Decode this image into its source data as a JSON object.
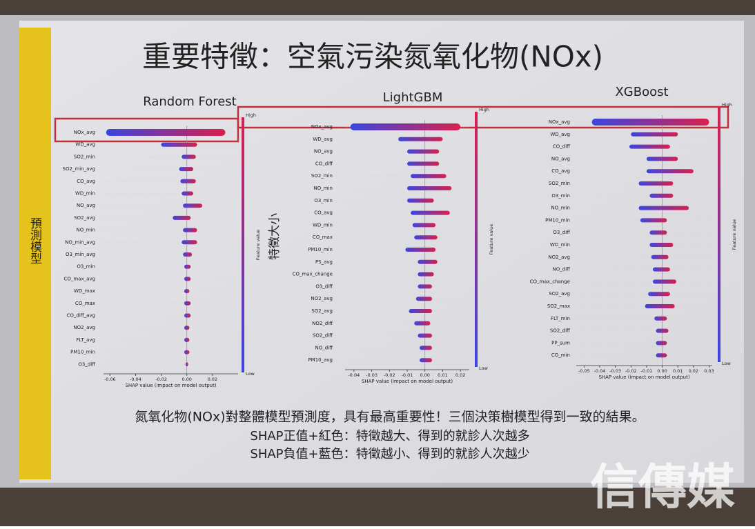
{
  "slide": {
    "title": "重要特徵：空氣污染氮氧化物(NOx)",
    "side_label": "預測模型",
    "axis_note": "特徵大小",
    "caption": [
      "氮氧化物(NOx)對整體模型預測度，具有最高重要性！三個決策樹模型得到一致的結果。",
      "SHAP正值+紅色：特徵越大、得到的就診人次越多",
      "SHAP負值+藍色：特徵越小、得到的就診人次越少"
    ],
    "watermark": "信傳媒"
  },
  "chart_data": [
    {
      "type": "beeswarm",
      "title": "Random Forest",
      "categories": [
        "NOx_avg",
        "WD_avg",
        "SO2_min",
        "SO2_min_avg",
        "CO_avg",
        "WD_min",
        "NO_avg",
        "SO2_avg",
        "NO_min",
        "NO_min_avg",
        "O3_min_avg",
        "O3_min",
        "CO_max_avg",
        "WD_max",
        "CO_max",
        "CO_diff_avg",
        "NO2_avg",
        "FLT_avg",
        "PM10_min",
        "O3_diff"
      ],
      "values_low": [
        -0.063,
        -0.02,
        -0.004,
        -0.006,
        -0.005,
        -0.004,
        -0.003,
        -0.011,
        -0.003,
        -0.004,
        -0.003,
        -0.002,
        -0.002,
        -0.002,
        -0.002,
        -0.002,
        -0.002,
        -0.002,
        -0.002,
        -0.001
      ],
      "values_high": [
        0.03,
        0.008,
        0.007,
        0.005,
        0.007,
        0.005,
        0.012,
        0.003,
        0.008,
        0.008,
        0.004,
        0.003,
        0.003,
        0.002,
        0.003,
        0.003,
        0.002,
        0.002,
        0.002,
        0.001
      ],
      "xlabel": "SHAP value (impact on model output)",
      "xlim": [
        -0.065,
        0.04
      ],
      "xticks": [
        -0.06,
        -0.04,
        -0.02,
        {
          "value": 0,
          "label": "0.00"
        },
        0.02
      ],
      "colorbar_label": "Feature value",
      "colorbar_high": "High",
      "colorbar_low": "Low",
      "low_color": "#3a46e0",
      "high_color": "#d8204c"
    },
    {
      "type": "beeswarm",
      "title": "LightGBM",
      "categories": [
        "NOx_avg",
        "WD_avg",
        "NO_avg",
        "CO_diff",
        "SO2_min",
        "NO_min",
        "O3_min",
        "CO_avg",
        "WD_min",
        "CO_max",
        "PM10_min",
        "PS_avg",
        "CO_max_change",
        "O3_diff",
        "NO2_avg",
        "SO2_avg",
        "NO2_diff",
        "SO2_diff",
        "NO_diff",
        "PM10_avg"
      ],
      "values_low": [
        -0.042,
        -0.015,
        -0.01,
        -0.01,
        -0.008,
        -0.01,
        -0.01,
        -0.008,
        -0.007,
        -0.006,
        -0.011,
        -0.004,
        -0.004,
        -0.004,
        -0.005,
        -0.009,
        -0.006,
        -0.004,
        -0.003,
        -0.003
      ],
      "values_high": [
        0.02,
        0.01,
        0.008,
        0.008,
        0.012,
        0.015,
        0.005,
        0.014,
        0.006,
        0.007,
        0.006,
        0.007,
        0.005,
        0.004,
        0.004,
        0.004,
        0.003,
        0.004,
        0.004,
        0.004
      ],
      "xlabel": "SHAP value (impact on model output)",
      "xlim": [
        -0.045,
        0.025
      ],
      "xticks": [
        -0.04,
        -0.03,
        -0.02,
        -0.01,
        {
          "value": 0,
          "label": "0.00"
        },
        0.01,
        0.02
      ],
      "colorbar_label": "Feature value",
      "colorbar_high": "High",
      "colorbar_low": "Low",
      "low_color": "#3a46e0",
      "high_color": "#d8204c"
    },
    {
      "type": "beeswarm",
      "title": "XGBoost",
      "categories": [
        "NOx_avg",
        "WD_avg",
        "CO_diff",
        "NO_avg",
        "CO_avg",
        "SO2_min",
        "O3_min",
        "NO_min",
        "PM10_min",
        "O3_diff",
        "WD_min",
        "NO2_avg",
        "NO_diff",
        "CO_max_change",
        "SO2_avg",
        "SO2_max",
        "FLT_min",
        "SO2_diff",
        "PP_sum",
        "CO_min"
      ],
      "values_low": [
        -0.045,
        -0.02,
        -0.021,
        -0.01,
        -0.01,
        -0.015,
        -0.008,
        -0.015,
        -0.014,
        -0.008,
        -0.008,
        -0.007,
        -0.006,
        -0.006,
        -0.009,
        -0.011,
        -0.005,
        -0.004,
        -0.004,
        -0.004
      ],
      "values_high": [
        0.03,
        0.01,
        0.005,
        0.01,
        0.02,
        0.007,
        0.007,
        0.017,
        0.003,
        0.003,
        0.007,
        0.004,
        0.005,
        0.009,
        0.005,
        0.008,
        0.003,
        0.004,
        0.003,
        0.003
      ],
      "xlabel": "SHAP value (impact on model output)",
      "xlim": [
        -0.055,
        0.032
      ],
      "xticks": [
        -0.05,
        -0.04,
        -0.03,
        -0.02,
        -0.01,
        {
          "value": 0,
          "label": "0.00"
        },
        0.01,
        0.02,
        0.03
      ],
      "colorbar_label": "Feature value",
      "colorbar_high": "High",
      "colorbar_low": "Low",
      "low_color": "#3a46e0",
      "high_color": "#d8204c"
    }
  ]
}
